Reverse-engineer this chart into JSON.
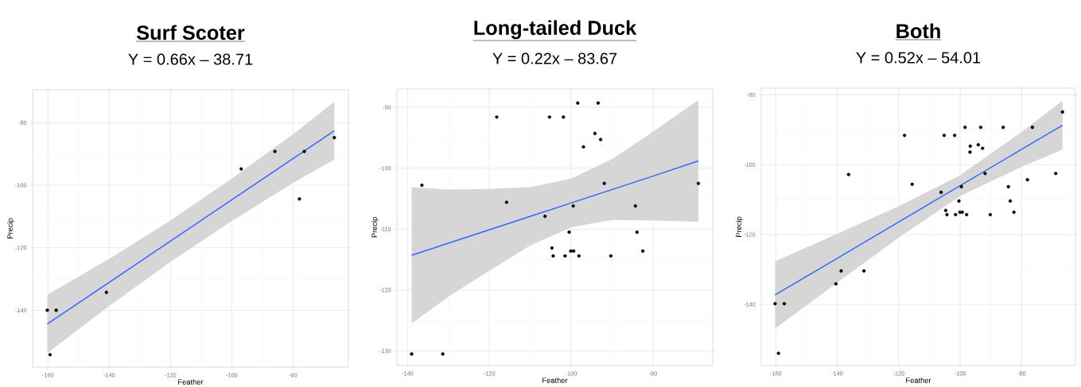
{
  "chart_data": [
    {
      "type": "scatter",
      "title": "Surf Scoter",
      "subtitle": "Y = 0.66x – 38.71",
      "xlabel": "Feather",
      "ylabel": "Precip",
      "xlim": [
        -165,
        -61.9
      ],
      "ylim": [
        -158.2,
        -69.5
      ],
      "xticks": [
        -160,
        -140,
        -120,
        -100,
        -80
      ],
      "yticks": [
        -140,
        -120,
        -100,
        -80
      ],
      "grid": true,
      "series": [
        {
          "type": "line",
          "marker": "none",
          "color": "#3366ff",
          "x": [
            -160.2,
            -140,
            -120,
            -100,
            -80,
            -66.5
          ],
          "values": [
            -144.4,
            -131.1,
            -117.9,
            -104.7,
            -91.5,
            -82.6
          ],
          "lower": [
            -153.7,
            -138.6,
            -124.5,
            -111.5,
            -99.3,
            -91.8
          ],
          "upper": [
            -135.1,
            -123.6,
            -111.3,
            -97.9,
            -83.7,
            -73.4
          ]
        },
        {
          "marker": "circle",
          "color": "#000000",
          "x": [
            -160.2,
            -157.3,
            -159.3,
            -140.9,
            -96.9,
            -85.9,
            -76.3,
            -77.9,
            -66.5
          ],
          "values": [
            -140,
            -140,
            -154.2,
            -134.3,
            -94.8,
            -89.2,
            -89.2,
            -104.4,
            -84.8
          ]
        }
      ]
    },
    {
      "type": "scatter",
      "title": "Long-tailed Duck",
      "subtitle": "Y = 0.22x – 83.67",
      "xlabel": "Feather",
      "ylabel": "Precip",
      "xlim": [
        -142.6,
        -65.4
      ],
      "ylim": [
        -132.4,
        -87
      ],
      "xticks": [
        -140,
        -120,
        -100,
        -80
      ],
      "yticks": [
        -130,
        -120,
        -110,
        -100,
        -90
      ],
      "grid": true,
      "series": [
        {
          "type": "line",
          "marker": "none",
          "color": "#3366ff",
          "x": [
            -139,
            -130,
            -120,
            -110,
            -100,
            -90,
            -80,
            -68.9
          ],
          "values": [
            -114.3,
            -112.3,
            -110.1,
            -107.9,
            -105.7,
            -103.5,
            -101.3,
            -98.8
          ],
          "lower": [
            -125.5,
            -121.1,
            -116.8,
            -112.7,
            -109.7,
            -108.5,
            -108.6,
            -108.8
          ],
          "upper": [
            -103.1,
            -103.5,
            -103.4,
            -103.1,
            -101.7,
            -98.5,
            -94,
            -88.8
          ]
        },
        {
          "marker": "circle",
          "color": "#000000",
          "x": [
            -139,
            -131.4,
            -136.5,
            -118.2,
            -115.8,
            -106.4,
            -105.3,
            -101.9,
            -98.4,
            -93.4,
            -94.2,
            -92.8,
            -97,
            -91.9,
            -99.5,
            -100.5,
            -104.7,
            -104.4,
            -101.5,
            -100.1,
            -99.4,
            -98.1,
            -90.3,
            -84.3,
            -83.9,
            -82.5,
            -68.9
          ],
          "values": [
            -130.5,
            -130.5,
            -102.8,
            -91.6,
            -105.6,
            -107.9,
            -91.6,
            -91.6,
            -89.3,
            -89.3,
            -94.3,
            -95.3,
            -96.5,
            -102.5,
            -106.2,
            -110.5,
            -113.1,
            -114.4,
            -114.4,
            -113.6,
            -113.6,
            -114.4,
            -114.4,
            -106.2,
            -110.5,
            -113.6,
            -102.5
          ]
        }
      ]
    },
    {
      "type": "scatter",
      "title": "Both",
      "subtitle": "Y = 0.52x – 54.01",
      "xlabel": "Feather",
      "ylabel": "Precip",
      "xlim": [
        -164.7,
        -62.5
      ],
      "ylim": [
        -157.5,
        -78.1
      ],
      "xticks": [
        -160,
        -140,
        -120,
        -100,
        -80
      ],
      "yticks": [
        -140,
        -120,
        -100,
        -80
      ],
      "grid": true,
      "series": [
        {
          "type": "line",
          "marker": "none",
          "color": "#3366ff",
          "x": [
            -160.2,
            -140,
            -120,
            -100,
            -80,
            -66.7
          ],
          "values": [
            -137.3,
            -126.8,
            -116.4,
            -106,
            -95.6,
            -88.7
          ],
          "lower": [
            -146.9,
            -133.8,
            -120.9,
            -109,
            -100.6,
            -95.7
          ],
          "upper": [
            -127.7,
            -119.8,
            -111.9,
            -103,
            -90.6,
            -81.7
          ]
        },
        {
          "marker": "circle",
          "color": "#000000",
          "x": [
            -160.2,
            -157.2,
            -159.1,
            -140.4,
            -138.7,
            -131.3,
            -136.3,
            -118.1,
            -115.6,
            -106.2,
            -105.2,
            -101.8,
            -98.4,
            -93.3,
            -86,
            -76.5,
            -66.7,
            -94.1,
            -96.7,
            -96.8,
            -92.7,
            -91.9,
            -99.6,
            -100.4,
            -104.7,
            -104.3,
            -101.5,
            -100.1,
            -99.3,
            -97.9,
            -90.2,
            -84.3,
            -83.7,
            -82.5,
            -78.1,
            -68.9
          ],
          "values": [
            -139.8,
            -139.8,
            -154,
            -134.1,
            -130.4,
            -130.4,
            -102.8,
            -91.6,
            -105.6,
            -107.9,
            -91.6,
            -91.6,
            -89.3,
            -89.3,
            -89.3,
            -89.3,
            -84.9,
            -94.3,
            -94.7,
            -96.4,
            -95.3,
            -102.5,
            -106.3,
            -110.4,
            -113.1,
            -114.3,
            -114.3,
            -113.6,
            -113.6,
            -114.3,
            -114.3,
            -106.3,
            -110.4,
            -113.6,
            -104.3,
            -102.5
          ]
        }
      ]
    }
  ]
}
